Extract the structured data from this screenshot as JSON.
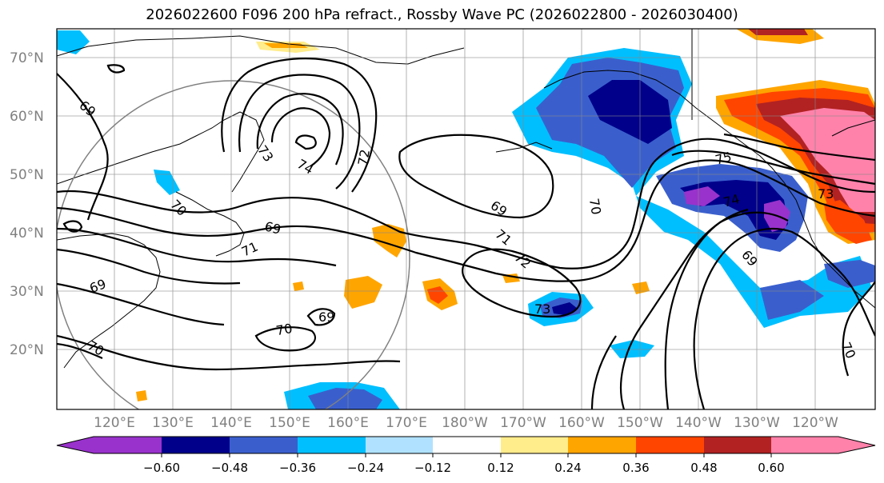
{
  "title": "2026022600 F096 200 hPa refract., Rossby Wave PC (2026022800 - 2026030400)",
  "map": {
    "lat_labels": [
      "70°N",
      "60°N",
      "50°N",
      "40°N",
      "30°N",
      "20°N"
    ],
    "lon_labels": [
      "120°E",
      "130°E",
      "140°E",
      "150°E",
      "160°E",
      "170°E",
      "180°W",
      "170°W",
      "160°W",
      "150°W",
      "140°W",
      "130°W",
      "120°W"
    ],
    "contour_labels": [
      "69",
      "73",
      "74",
      "72",
      "70",
      "69",
      "71",
      "69",
      "71",
      "72",
      "70",
      "69",
      "73",
      "75",
      "74",
      "73",
      "69",
      "70",
      "70",
      "69",
      "70",
      "69"
    ],
    "colors": {
      "fill_neg_060": "#9932cc",
      "fill_neg_048": "#00008b",
      "fill_neg_036": "#3a5fcd",
      "fill_neg_024": "#00bfff",
      "fill_neg_012": "#b0e2ff",
      "fill_pos_012": "#ffec8b",
      "fill_pos_024": "#ffa500",
      "fill_pos_036": "#ff4500",
      "fill_pos_048": "#b22222",
      "fill_pos_060": "#ff82ab"
    }
  },
  "colorbar": {
    "colors": [
      "#9932cc",
      "#00008b",
      "#3a5fcd",
      "#00bfff",
      "#b0e2ff",
      "#ffffff",
      "#ffec8b",
      "#ffa500",
      "#ff4500",
      "#b22222",
      "#ff82ab"
    ],
    "ticks": [
      "−0.60",
      "−0.48",
      "−0.36",
      "−0.24",
      "−0.12",
      "0.12",
      "0.24",
      "0.36",
      "0.48",
      "0.60"
    ]
  }
}
